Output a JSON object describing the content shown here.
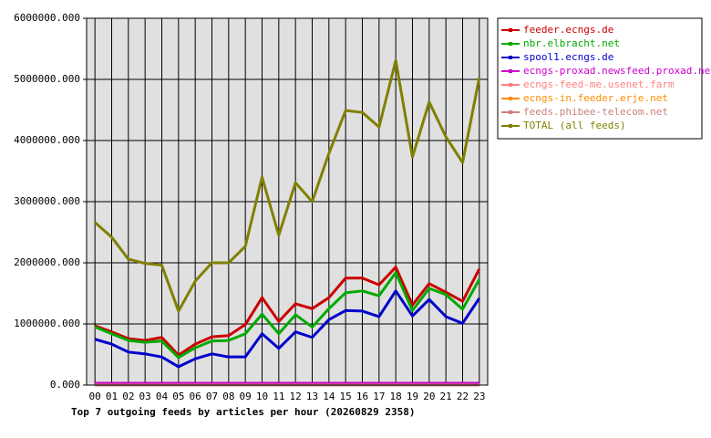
{
  "chart_data": {
    "type": "line",
    "title": "Top 7 outgoing feeds by articles per hour (20260829 2358)",
    "categories": [
      "00",
      "01",
      "02",
      "03",
      "04",
      "05",
      "06",
      "07",
      "08",
      "09",
      "10",
      "11",
      "12",
      "13",
      "14",
      "15",
      "16",
      "17",
      "18",
      "19",
      "20",
      "21",
      "22",
      "23"
    ],
    "ylim": [
      0,
      6000000
    ],
    "yticks": [
      {
        "value": 0,
        "label": "0.000"
      },
      {
        "value": 1000000,
        "label": "1000000.000"
      },
      {
        "value": 2000000,
        "label": "2000000.000"
      },
      {
        "value": 3000000,
        "label": "3000000.000"
      },
      {
        "value": 4000000,
        "label": "4000000.000"
      },
      {
        "value": 5000000,
        "label": "5000000.000"
      },
      {
        "value": 6000000,
        "label": "6000000.000"
      }
    ],
    "grid": true,
    "legend": "right",
    "series": [
      {
        "name": "feeder.ecngs.de",
        "color": "#cc0000",
        "values": [
          970000,
          870000,
          760000,
          730000,
          780000,
          490000,
          670000,
          790000,
          810000,
          990000,
          1430000,
          1040000,
          1330000,
          1250000,
          1430000,
          1750000,
          1750000,
          1640000,
          1930000,
          1310000,
          1660000,
          1520000,
          1370000,
          1900000
        ]
      },
      {
        "name": "nbr.elbracht.net",
        "color": "#00aa00",
        "values": [
          950000,
          840000,
          730000,
          700000,
          720000,
          450000,
          610000,
          720000,
          730000,
          840000,
          1160000,
          840000,
          1150000,
          950000,
          1250000,
          1510000,
          1540000,
          1460000,
          1840000,
          1220000,
          1580000,
          1480000,
          1240000,
          1730000
        ]
      },
      {
        "name": "spool1.ecngs.de",
        "color": "#0000cc",
        "values": [
          750000,
          670000,
          540000,
          510000,
          460000,
          300000,
          430000,
          510000,
          460000,
          460000,
          840000,
          600000,
          870000,
          780000,
          1070000,
          1220000,
          1210000,
          1120000,
          1540000,
          1130000,
          1400000,
          1120000,
          1010000,
          1420000
        ]
      },
      {
        "name": "ecngs-proxad.newsfeed.proxad.net",
        "color": "#cc00cc",
        "values": [
          30000,
          30000,
          30000,
          30000,
          30000,
          30000,
          30000,
          30000,
          30000,
          30000,
          30000,
          30000,
          30000,
          30000,
          30000,
          30000,
          30000,
          30000,
          30000,
          30000,
          30000,
          30000,
          30000,
          30000
        ]
      },
      {
        "name": "ecngs-feed-me.usenet.farm",
        "color": "#ff8080",
        "values": [
          0,
          0,
          0,
          0,
          0,
          0,
          0,
          0,
          0,
          0,
          0,
          0,
          0,
          0,
          0,
          0,
          0,
          0,
          0,
          0,
          0,
          0,
          0,
          0
        ]
      },
      {
        "name": "ecngs-in.feeder.erje.net",
        "color": "#ff8c00",
        "values": [
          0,
          0,
          0,
          0,
          0,
          0,
          0,
          0,
          0,
          0,
          0,
          0,
          0,
          0,
          0,
          0,
          0,
          0,
          0,
          0,
          0,
          0,
          0,
          0
        ]
      },
      {
        "name": "feeds.phibee-telecom.net",
        "color": "#cc8080",
        "values": [
          0,
          0,
          0,
          0,
          0,
          0,
          0,
          0,
          0,
          0,
          0,
          0,
          0,
          0,
          0,
          0,
          0,
          0,
          0,
          0,
          0,
          0,
          0,
          0
        ]
      },
      {
        "name": "TOTAL (all feeds)",
        "color": "#808000",
        "values": [
          2660000,
          2420000,
          2060000,
          1990000,
          1960000,
          1210000,
          1700000,
          2000000,
          2000000,
          2270000,
          3400000,
          2450000,
          3310000,
          3000000,
          3790000,
          4490000,
          4460000,
          4220000,
          5310000,
          3730000,
          4630000,
          4060000,
          3640000,
          5030000
        ]
      }
    ]
  }
}
